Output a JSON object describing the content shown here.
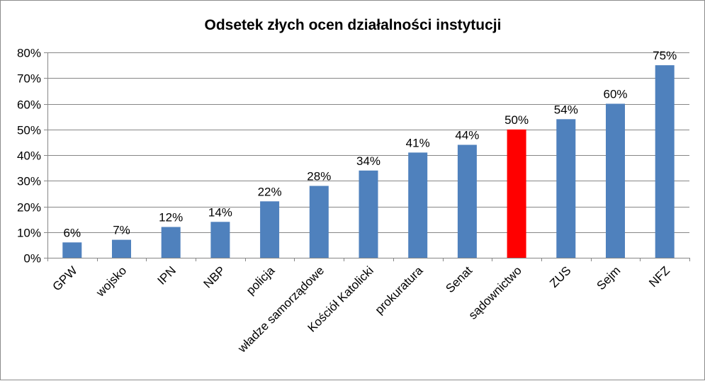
{
  "chart_data": {
    "type": "bar",
    "title": "Odsetek złych ocen działalności  instytucji",
    "categories": [
      "GPW",
      "wojsko",
      "IPN",
      "NBP",
      "policja",
      "władze samorządowe",
      "Kościół Katolicki",
      "prokuratura",
      "Senat",
      "sądownictwo",
      "ZUS",
      "Sejm",
      "NFZ"
    ],
    "values": [
      6,
      7,
      12,
      14,
      22,
      28,
      34,
      41,
      44,
      50,
      54,
      60,
      75
    ],
    "value_labels": [
      "6%",
      "7%",
      "12%",
      "14%",
      "22%",
      "28%",
      "34%",
      "41%",
      "44%",
      "50%",
      "54%",
      "60%",
      "75%"
    ],
    "y_ticks": [
      "0%",
      "10%",
      "20%",
      "30%",
      "40%",
      "50%",
      "60%",
      "70%",
      "80%"
    ],
    "ylim": [
      0,
      80
    ],
    "grid": true,
    "legend": "none",
    "colors": {
      "bar": "#4f81bd",
      "highlight": "#ff0000",
      "grid": "#868686",
      "axis": "#868686"
    },
    "highlight_category": "sądownictwo"
  }
}
